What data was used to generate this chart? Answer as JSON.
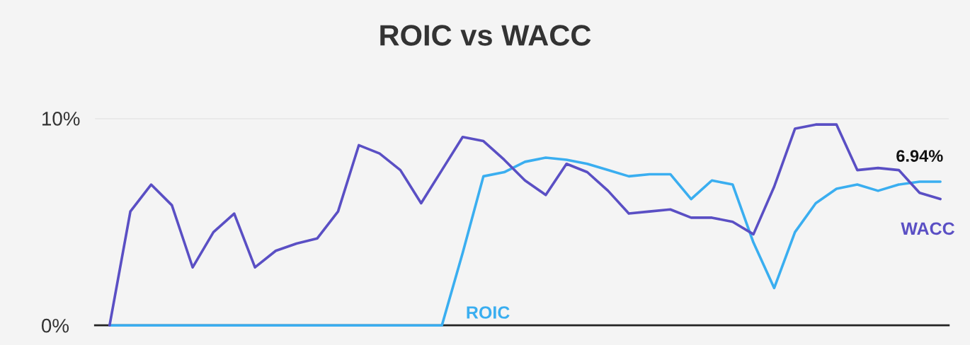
{
  "chart_data": {
    "type": "line",
    "title": "ROIC vs WACC",
    "categories": [
      null,
      null,
      null,
      null,
      null,
      null,
      null,
      null,
      null,
      null,
      null,
      null,
      null,
      null,
      null,
      null,
      null,
      null,
      null,
      null,
      null,
      null,
      null,
      null,
      null,
      null,
      null,
      null,
      null,
      null,
      null,
      null,
      null,
      null,
      null,
      null,
      null,
      null,
      null,
      null,
      null
    ],
    "series": [
      {
        "name": "ROIC",
        "color": "#3aaef0",
        "values": [
          0,
          0,
          0,
          0,
          0,
          0,
          0,
          0,
          0,
          0,
          0,
          0,
          0,
          0,
          0,
          0,
          0,
          3.5,
          7.2,
          7.4,
          7.9,
          8.1,
          8.0,
          7.8,
          7.5,
          7.2,
          7.3,
          7.3,
          6.1,
          7.0,
          6.8,
          4.0,
          1.8,
          4.5,
          5.9,
          6.6,
          6.8,
          6.5,
          6.8,
          6.94,
          6.94
        ],
        "value_labels": [
          null,
          null,
          null,
          null,
          null,
          null,
          null,
          null,
          null,
          null,
          null,
          null,
          null,
          null,
          null,
          null,
          null,
          null,
          null,
          null,
          null,
          null,
          null,
          null,
          null,
          null,
          null,
          null,
          null,
          null,
          null,
          null,
          null,
          null,
          null,
          null,
          null,
          null,
          null,
          "6.94%",
          null
        ]
      },
      {
        "name": "WACC",
        "color": "#5a4fc4",
        "values": [
          0,
          5.5,
          6.8,
          5.8,
          2.8,
          4.5,
          5.4,
          2.8,
          3.6,
          3.95,
          4.2,
          5.5,
          8.7,
          8.3,
          7.5,
          5.9,
          7.5,
          9.1,
          8.9,
          8.0,
          7.0,
          6.3,
          7.8,
          7.4,
          6.5,
          5.4,
          5.5,
          5.6,
          5.2,
          5.2,
          5.0,
          4.4,
          6.7,
          9.5,
          9.7,
          9.7,
          7.5,
          7.6,
          7.5,
          6.4,
          6.1
        ]
      }
    ],
    "ylim": [
      0,
      10
    ],
    "yticks": [
      {
        "value": 0,
        "label": "0%"
      },
      {
        "value": 10,
        "label": "10%"
      }
    ],
    "grid": "y",
    "legend": false,
    "marker": "none",
    "line_style": "solid"
  }
}
